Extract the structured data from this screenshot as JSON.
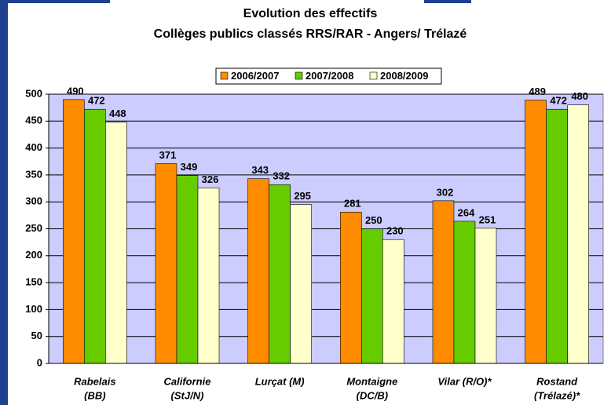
{
  "chart_data": {
    "type": "bar",
    "title": [
      "Evolution des effectifs",
      "Collèges publics classés RRS/RAR - Angers/ Trélazé"
    ],
    "categories": [
      [
        "Rabelais",
        "(BB)"
      ],
      [
        "Californie",
        "(StJ/N)"
      ],
      [
        "Lurçat (M)"
      ],
      [
        "Montaigne",
        "(DC/B)"
      ],
      [
        "Vilar (R/O)*"
      ],
      [
        "Rostand",
        "(Trélazé)*"
      ]
    ],
    "series": [
      {
        "name": "2006/2007",
        "color": "#ff8c00",
        "values": [
          490,
          371,
          343,
          281,
          302,
          489
        ]
      },
      {
        "name": "2007/2008",
        "color": "#66cc00",
        "values": [
          472,
          349,
          332,
          250,
          264,
          472
        ]
      },
      {
        "name": "2008/2009",
        "color": "#ffffcc",
        "values": [
          448,
          326,
          295,
          230,
          251,
          480
        ]
      }
    ],
    "ylim": [
      0,
      500
    ],
    "yticks": [
      0,
      50,
      100,
      150,
      200,
      250,
      300,
      350,
      400,
      450,
      500
    ],
    "grid": true,
    "legend": "top",
    "plot_background": "#ccccff"
  }
}
